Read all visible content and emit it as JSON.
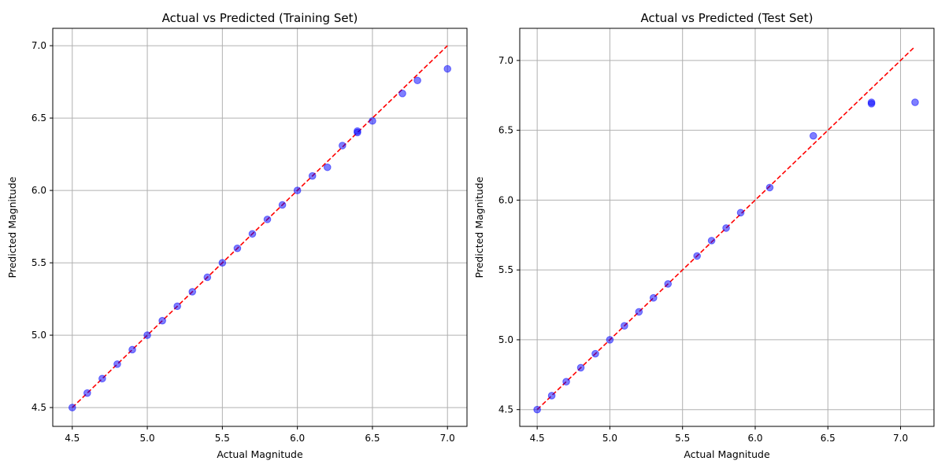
{
  "chart_data": [
    {
      "type": "scatter",
      "title": "Actual vs Predicted (Training Set)",
      "xlabel": "Actual Magnitude",
      "ylabel": "Predicted Magnitude",
      "xlim": [
        4.37,
        7.13
      ],
      "ylim": [
        4.37,
        7.12
      ],
      "xticks": [
        "4.5",
        "5.0",
        "5.5",
        "6.0",
        "6.5",
        "7.0"
      ],
      "yticks": [
        "4.5",
        "5.0",
        "5.5",
        "6.0",
        "6.5",
        "7.0"
      ],
      "grid": true,
      "point_color": "#0000ff",
      "reference_line": {
        "color": "#ff0000",
        "style": "dashed",
        "from": [
          4.5,
          4.5
        ],
        "to": [
          7.0,
          7.0
        ]
      },
      "points": [
        {
          "x": 4.5,
          "y": 4.5
        },
        {
          "x": 4.6,
          "y": 4.6
        },
        {
          "x": 4.7,
          "y": 4.7
        },
        {
          "x": 4.8,
          "y": 4.8
        },
        {
          "x": 4.9,
          "y": 4.9
        },
        {
          "x": 5.0,
          "y": 5.0
        },
        {
          "x": 5.1,
          "y": 5.1
        },
        {
          "x": 5.2,
          "y": 5.2
        },
        {
          "x": 5.3,
          "y": 5.3
        },
        {
          "x": 5.4,
          "y": 5.4
        },
        {
          "x": 5.5,
          "y": 5.5
        },
        {
          "x": 5.6,
          "y": 5.6
        },
        {
          "x": 5.7,
          "y": 5.7
        },
        {
          "x": 5.8,
          "y": 5.8
        },
        {
          "x": 5.9,
          "y": 5.9
        },
        {
          "x": 6.0,
          "y": 6.0
        },
        {
          "x": 6.1,
          "y": 6.1
        },
        {
          "x": 6.2,
          "y": 6.16
        },
        {
          "x": 6.3,
          "y": 6.31
        },
        {
          "x": 6.4,
          "y": 6.4
        },
        {
          "x": 6.4,
          "y": 6.41
        },
        {
          "x": 6.5,
          "y": 6.48
        },
        {
          "x": 6.7,
          "y": 6.67
        },
        {
          "x": 6.8,
          "y": 6.76
        },
        {
          "x": 7.0,
          "y": 6.84
        }
      ]
    },
    {
      "type": "scatter",
      "title": "Actual vs Predicted (Test Set)",
      "xlabel": "Actual Magnitude",
      "ylabel": "Predicted Magnitude",
      "xlim": [
        4.38,
        7.23
      ],
      "ylim": [
        4.38,
        7.23
      ],
      "xticks": [
        "4.5",
        "5.0",
        "5.5",
        "6.0",
        "6.5",
        "7.0"
      ],
      "yticks": [
        "4.5",
        "5.0",
        "5.5",
        "6.0",
        "6.5",
        "7.0"
      ],
      "grid": true,
      "point_color": "#0000ff",
      "reference_line": {
        "color": "#ff0000",
        "style": "dashed",
        "from": [
          4.5,
          4.5
        ],
        "to": [
          7.1,
          7.1
        ]
      },
      "points": [
        {
          "x": 4.5,
          "y": 4.5
        },
        {
          "x": 4.6,
          "y": 4.6
        },
        {
          "x": 4.7,
          "y": 4.7
        },
        {
          "x": 4.8,
          "y": 4.8
        },
        {
          "x": 4.9,
          "y": 4.9
        },
        {
          "x": 5.0,
          "y": 5.0
        },
        {
          "x": 5.1,
          "y": 5.1
        },
        {
          "x": 5.2,
          "y": 5.2
        },
        {
          "x": 5.3,
          "y": 5.3
        },
        {
          "x": 5.4,
          "y": 5.4
        },
        {
          "x": 5.6,
          "y": 5.6
        },
        {
          "x": 5.7,
          "y": 5.71
        },
        {
          "x": 5.8,
          "y": 5.8
        },
        {
          "x": 5.9,
          "y": 5.91
        },
        {
          "x": 6.1,
          "y": 6.09
        },
        {
          "x": 6.4,
          "y": 6.46
        },
        {
          "x": 6.8,
          "y": 6.69
        },
        {
          "x": 6.8,
          "y": 6.7
        },
        {
          "x": 7.1,
          "y": 6.7
        }
      ]
    }
  ]
}
